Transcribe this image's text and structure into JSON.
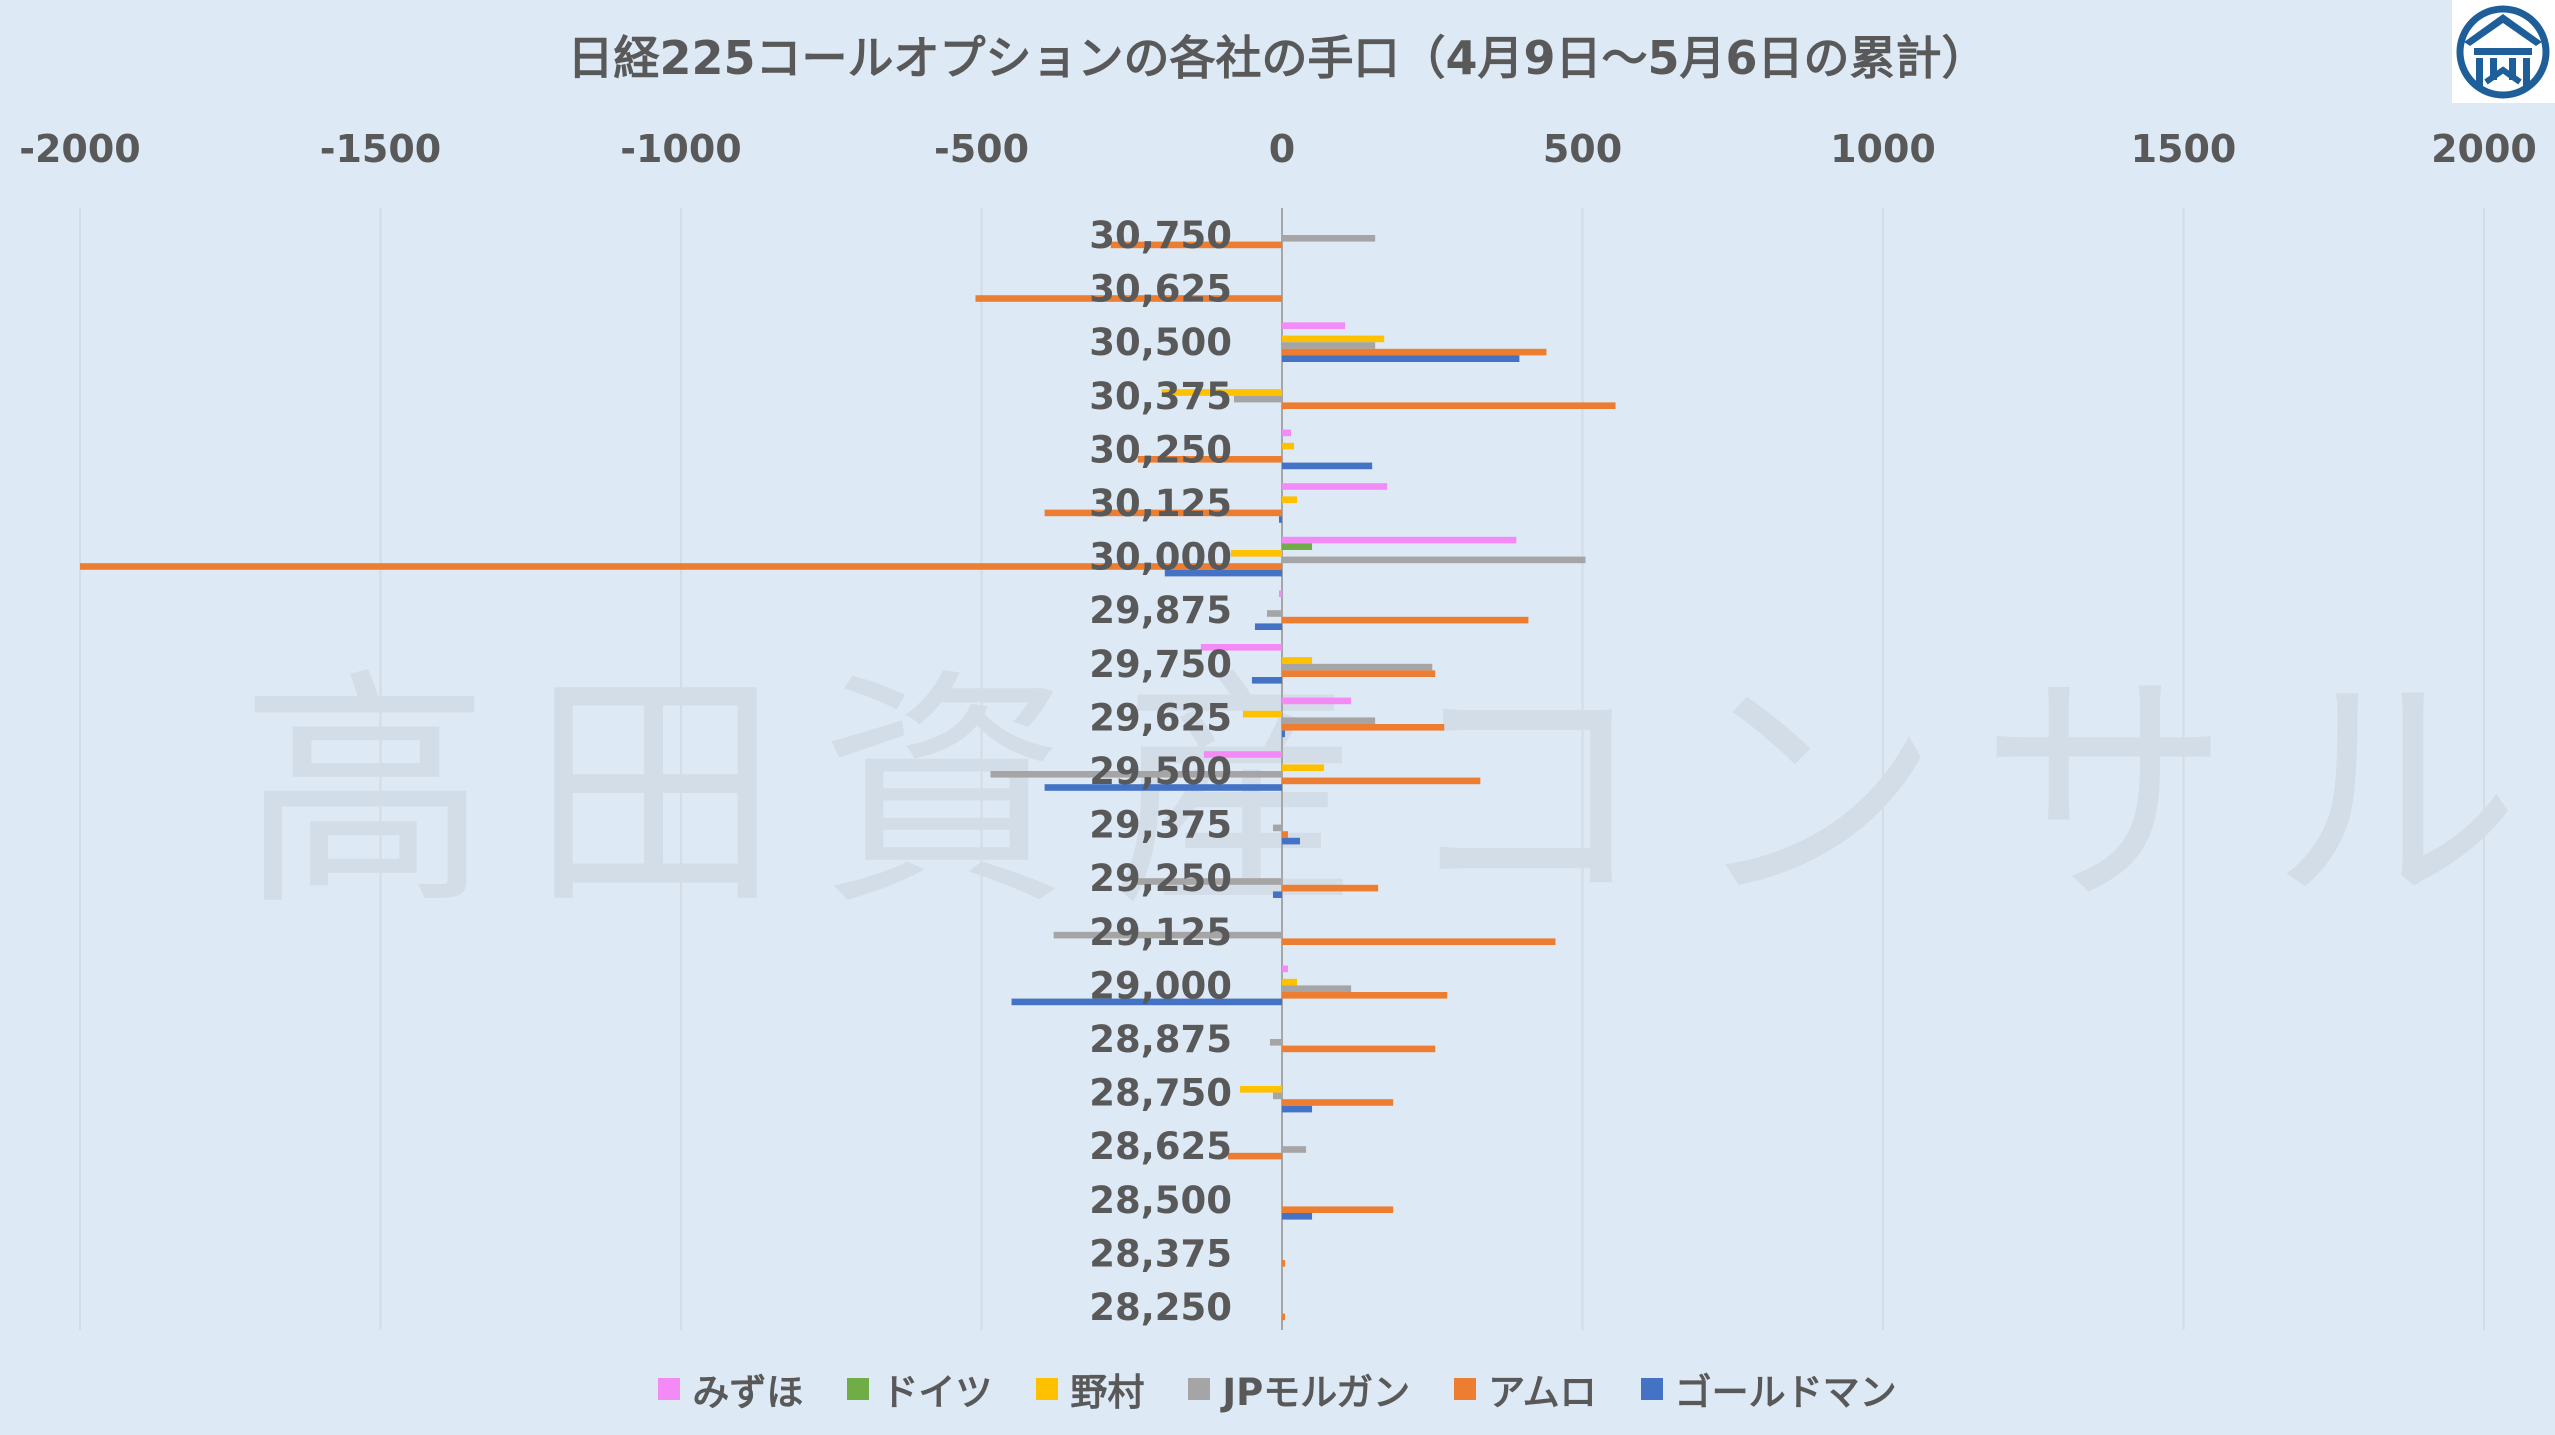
{
  "title": "日経225コールオプションの各社の手口（4月9日～5月6日の累計）",
  "watermark": "高田資産コンサル",
  "logo": {
    "icon": "building-roof-logo-icon",
    "color": "#1f5f99"
  },
  "chart_data": {
    "type": "bar",
    "orientation": "horizontal",
    "xlim": [
      -2000,
      2000
    ],
    "xticks": [
      -2000,
      -1500,
      -1000,
      -500,
      0,
      500,
      1000,
      1500,
      2000
    ],
    "x_axis_position": "top",
    "grid": true,
    "legend_position": "bottom",
    "categories": [
      "30,750",
      "30,625",
      "30,500",
      "30,375",
      "30,250",
      "30,125",
      "30,000",
      "29,875",
      "29,750",
      "29,625",
      "29,500",
      "29,375",
      "29,250",
      "29,125",
      "29,000",
      "28,875",
      "28,750",
      "28,625",
      "28,500",
      "28,375",
      "28,250"
    ],
    "series": [
      {
        "name": "みずほ",
        "color": "#f38af5",
        "values": [
          0,
          0,
          105,
          0,
          15,
          175,
          390,
          -5,
          -135,
          115,
          -130,
          0,
          0,
          0,
          10,
          0,
          0,
          0,
          0,
          0,
          0
        ]
      },
      {
        "name": "ドイツ",
        "color": "#70ad47",
        "values": [
          0,
          0,
          0,
          0,
          0,
          0,
          50,
          0,
          0,
          0,
          0,
          0,
          0,
          0,
          0,
          0,
          0,
          0,
          0,
          0,
          0
        ]
      },
      {
        "name": "野村",
        "color": "#ffc000",
        "values": [
          0,
          0,
          170,
          -200,
          20,
          25,
          -85,
          0,
          50,
          -65,
          70,
          0,
          0,
          0,
          25,
          0,
          -70,
          0,
          0,
          0,
          0
        ]
      },
      {
        "name": "JPモルガン",
        "color": "#a5a5a5",
        "values": [
          155,
          0,
          155,
          -80,
          0,
          0,
          505,
          -25,
          250,
          155,
          -485,
          -15,
          -245,
          -380,
          115,
          -20,
          -15,
          40,
          0,
          0,
          0
        ]
      },
      {
        "name": "アムロ",
        "color": "#ed7d31",
        "values": [
          -285,
          -510,
          440,
          555,
          -240,
          -395,
          -2000,
          410,
          255,
          270,
          330,
          10,
          160,
          455,
          275,
          255,
          185,
          -90,
          185,
          5,
          5
        ]
      },
      {
        "name": "ゴールドマン",
        "color": "#4472c4",
        "values": [
          0,
          0,
          395,
          0,
          150,
          -5,
          -195,
          -45,
          -50,
          5,
          -395,
          30,
          -15,
          0,
          -450,
          0,
          50,
          0,
          50,
          0,
          0
        ]
      }
    ]
  }
}
